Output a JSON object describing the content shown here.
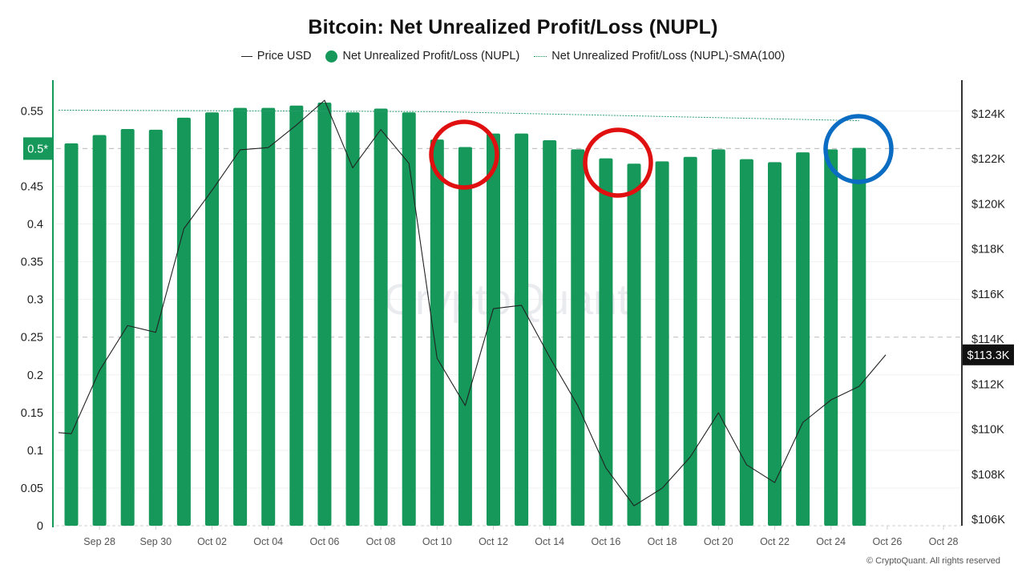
{
  "title": "Bitcoin: Net Unrealized Profit/Loss (NUPL)",
  "legend": [
    {
      "label": "Price USD",
      "icon": "line-swatch"
    },
    {
      "label": "Net Unrealized Profit/Loss (NUPL)",
      "icon": "dot-swatch"
    },
    {
      "label": "Net Unrealized Profit/Loss (NUPL)-SMA(100)",
      "icon": "dotted-line-swatch"
    }
  ],
  "copyright": "© CryptoQuant. All rights reserved",
  "watermark": "CryptoQuant",
  "colors": {
    "bar": "#15985a",
    "price_line": "#222222",
    "sma_line": "#2e9e73",
    "left_axis": "#15985a",
    "right_axis": "#333333",
    "highlight_badge": "#15985a",
    "price_badge": "#111111",
    "annotation_red": "#e01010",
    "annotation_blue": "#0a6cc2"
  },
  "chart_data": {
    "type": "bar",
    "title": "Bitcoin: Net Unrealized Profit/Loss (NUPL)",
    "x": [
      "Sep 27",
      "Sep 28",
      "Sep 29",
      "Sep 30",
      "Oct 01",
      "Oct 02",
      "Oct 03",
      "Oct 04",
      "Oct 05",
      "Oct 06",
      "Oct 07",
      "Oct 08",
      "Oct 09",
      "Oct 10",
      "Oct 11",
      "Oct 12",
      "Oct 13",
      "Oct 14",
      "Oct 15",
      "Oct 16",
      "Oct 17",
      "Oct 18",
      "Oct 19",
      "Oct 20",
      "Oct 21",
      "Oct 22",
      "Oct 23",
      "Oct 24",
      "Oct 25"
    ],
    "x_tick_labels": [
      "Sep 28",
      "Sep 30",
      "Oct 02",
      "Oct 04",
      "Oct 06",
      "Oct 08",
      "Oct 10",
      "Oct 12",
      "Oct 14",
      "Oct 16",
      "Oct 18",
      "Oct 20",
      "Oct 22",
      "Oct 24",
      "Oct 26",
      "Oct 28"
    ],
    "series": [
      {
        "name": "Net Unrealized Profit/Loss (NUPL)",
        "type": "bar",
        "axis": "left",
        "values": [
          0.507,
          0.518,
          0.526,
          0.525,
          0.541,
          0.548,
          0.554,
          0.554,
          0.557,
          0.561,
          0.548,
          0.553,
          0.548,
          0.512,
          0.502,
          0.52,
          0.52,
          0.511,
          0.499,
          0.487,
          0.48,
          0.483,
          0.489,
          0.499,
          0.486,
          0.482,
          0.495,
          0.499,
          0.501
        ]
      },
      {
        "name": "Price USD",
        "type": "line",
        "axis": "right",
        "x": [
          "Sep 26",
          "Sep 27",
          "Sep 28",
          "Sep 29",
          "Sep 30",
          "Oct 01",
          "Oct 02",
          "Oct 03",
          "Oct 04",
          "Oct 05",
          "Oct 06",
          "Oct 07",
          "Oct 08",
          "Oct 09",
          "Oct 10",
          "Oct 11",
          "Oct 12",
          "Oct 13",
          "Oct 14",
          "Oct 15",
          "Oct 16",
          "Oct 17",
          "Oct 18",
          "Oct 19",
          "Oct 20",
          "Oct 21",
          "Oct 22",
          "Oct 23",
          "Oct 24",
          "Oct 25",
          "Oct 26"
        ],
        "values": [
          109850,
          109800,
          112600,
          114600,
          114300,
          118900,
          120600,
          122400,
          122500,
          123500,
          124600,
          121600,
          123300,
          121800,
          113150,
          111050,
          115350,
          115500,
          113200,
          111050,
          108280,
          106600,
          107380,
          108770,
          110730,
          108420,
          107630,
          110300,
          111300,
          111900,
          113300
        ]
      },
      {
        "name": "Net Unrealized Profit/Loss (NUPL)-SMA(100)",
        "type": "line",
        "style": "dotted",
        "axis": "left",
        "x": [
          "Sep 26",
          "Oct 10",
          "Oct 25"
        ],
        "values": [
          0.551,
          0.549,
          0.537
        ]
      }
    ],
    "y_left": {
      "ticks": [
        "0",
        "0.05",
        "0.1",
        "0.15",
        "0.2",
        "0.25",
        "0.3",
        "0.35",
        "0.4",
        "0.45",
        "0.5*",
        "0.55"
      ],
      "range": [
        0,
        0.595
      ],
      "highlight_label": "0.5*",
      "highlight_value": 0.5
    },
    "y_right": {
      "ticks": [
        "$106K",
        "$108K",
        "$110K",
        "$112K",
        "$114K",
        "$116K",
        "$118K",
        "$120K",
        "$122K",
        "$124K"
      ],
      "range": [
        105700,
        125700
      ],
      "current_label": "$113.3K",
      "current_value": 113300
    },
    "reference_lines": [
      {
        "axis": "left",
        "value": 0.5,
        "style": "dashed"
      },
      {
        "axis": "left",
        "value": 0.25,
        "style": "dashed"
      }
    ],
    "annotations": [
      {
        "shape": "circle",
        "color": "red",
        "around": "Oct 11"
      },
      {
        "shape": "circle",
        "color": "red",
        "around": "Oct 16-Oct 17"
      },
      {
        "shape": "circle",
        "color": "blue",
        "around": "Oct 25"
      }
    ],
    "grid": true,
    "legend_position": "top-center"
  }
}
